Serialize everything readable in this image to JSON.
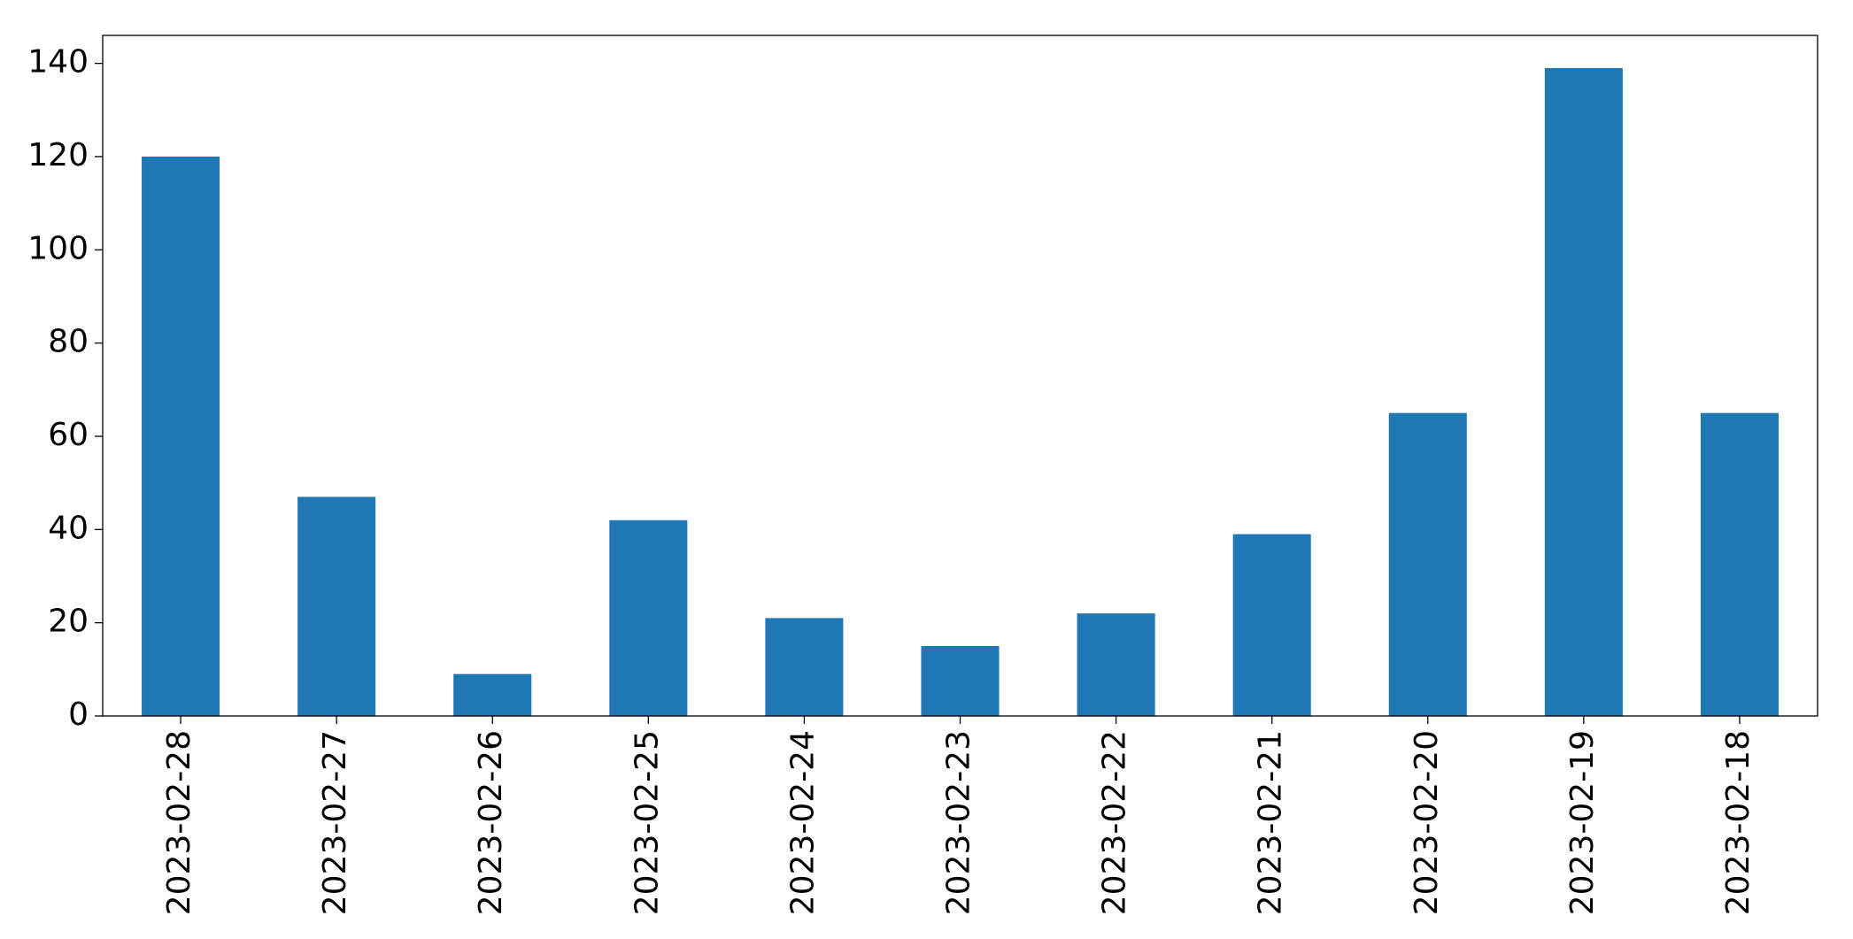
{
  "chart_data": {
    "type": "bar",
    "categories": [
      "2023-02-28",
      "2023-02-27",
      "2023-02-26",
      "2023-02-25",
      "2023-02-24",
      "2023-02-23",
      "2023-02-22",
      "2023-02-21",
      "2023-02-20",
      "2023-02-19",
      "2023-02-18"
    ],
    "values": [
      120,
      47,
      9,
      42,
      21,
      15,
      22,
      39,
      65,
      139,
      65
    ],
    "color": "#1f77b4",
    "ylim": [
      0,
      146
    ],
    "yticks": [
      0,
      20,
      40,
      60,
      80,
      100,
      120,
      140
    ],
    "grid": false
  }
}
